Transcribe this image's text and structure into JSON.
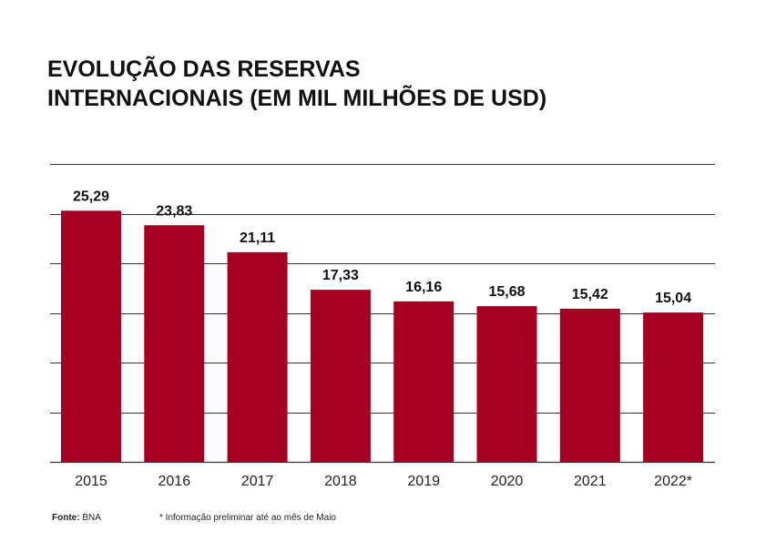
{
  "chart_data": {
    "type": "bar",
    "title_lines": [
      "EVOLUÇÃO DAS RESERVAS",
      "INTERNACIONAIS (EM MIL MILHÕES DE USD)"
    ],
    "categories": [
      "2015",
      "2016",
      "2017",
      "2018",
      "2019",
      "2020",
      "2021",
      "2022*"
    ],
    "values": [
      25.29,
      23.83,
      21.11,
      17.33,
      16.16,
      15.68,
      15.42,
      15.04
    ],
    "value_labels": [
      "25,29",
      "23,83",
      "21,11",
      "17,33",
      "16,16",
      "15,68",
      "15,42",
      "15,04"
    ],
    "ylim": [
      0,
      30
    ],
    "gridlines": [
      0,
      5,
      10,
      15,
      20,
      25,
      30
    ],
    "grid": true,
    "bar_color": "#a50021",
    "grid_color": "#333333"
  },
  "footer": {
    "source_label": "Fonte:",
    "source_value": "BNA",
    "note": "* Informação preliminar até ao mês de Maio"
  }
}
